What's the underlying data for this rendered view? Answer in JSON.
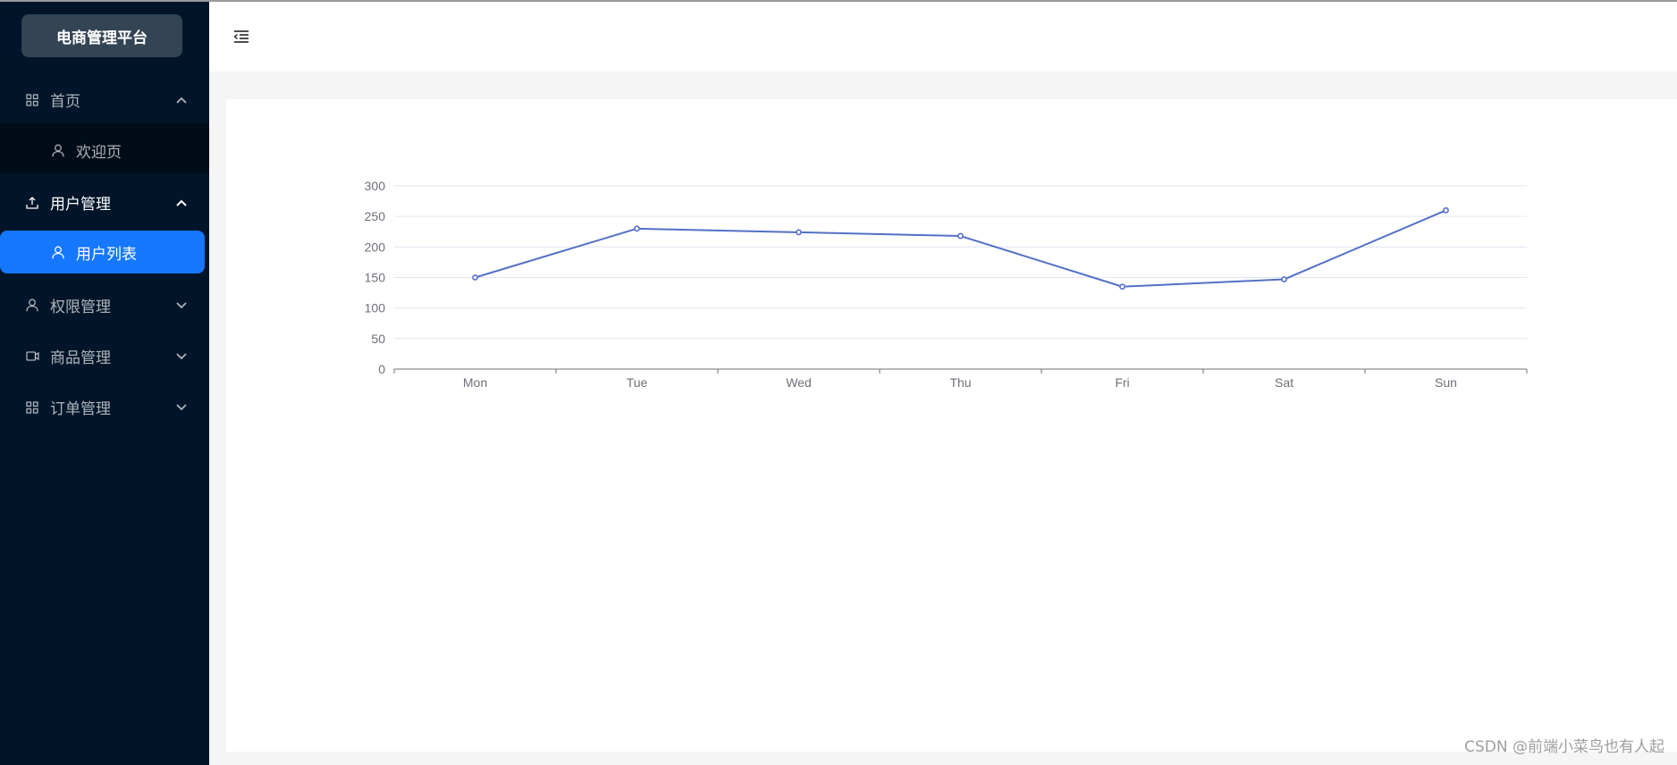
{
  "sidebar": {
    "logo": "电商管理平台",
    "menus": [
      {
        "label": "首页",
        "icon": "appstore-icon",
        "open": true,
        "children": [
          "欢迎页"
        ]
      },
      {
        "label": "用户管理",
        "icon": "upload-icon",
        "open": true,
        "children": [
          "用户列表"
        ],
        "selected_child": "用户列表"
      },
      {
        "label": "权限管理",
        "icon": "user-icon",
        "open": false
      },
      {
        "label": "商品管理",
        "icon": "video-camera-icon",
        "open": false
      },
      {
        "label": "订单管理",
        "icon": "appstore-icon",
        "open": false
      }
    ]
  },
  "header": {
    "toggle_icon": "menu-fold-icon"
  },
  "colors": {
    "sidebar_bg": "#001529",
    "submenu_bg": "#000c17",
    "selected": "#1677ff",
    "line": "#5470c6"
  },
  "chart_data": {
    "type": "line",
    "categories": [
      "Mon",
      "Tue",
      "Wed",
      "Thu",
      "Fri",
      "Sat",
      "Sun"
    ],
    "values": [
      150,
      230,
      224,
      218,
      135,
      147,
      260
    ],
    "ylim": [
      0,
      300
    ],
    "yticks": [
      0,
      50,
      100,
      150,
      200,
      250,
      300
    ],
    "grid": true,
    "title": "",
    "xlabel": "",
    "ylabel": ""
  },
  "watermark": "CSDN @前端小菜鸟也有人起"
}
